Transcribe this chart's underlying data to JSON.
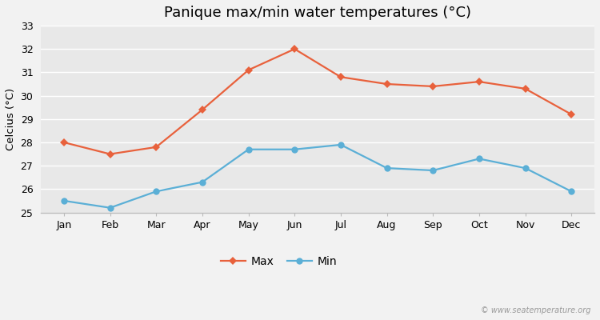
{
  "title": "Panique max/min water temperatures (°C)",
  "ylabel": "Celcius (°C)",
  "months": [
    "Jan",
    "Feb",
    "Mar",
    "Apr",
    "May",
    "Jun",
    "Jul",
    "Aug",
    "Sep",
    "Oct",
    "Nov",
    "Dec"
  ],
  "max_temps": [
    28.0,
    27.5,
    27.8,
    29.4,
    31.1,
    32.0,
    30.8,
    30.5,
    30.4,
    30.6,
    30.3,
    29.2
  ],
  "min_temps": [
    25.5,
    25.2,
    25.9,
    26.3,
    27.7,
    27.7,
    27.9,
    26.9,
    26.8,
    27.3,
    26.9,
    25.9
  ],
  "max_color": "#e8613c",
  "min_color": "#5bafd6",
  "ylim": [
    25,
    33
  ],
  "yticks": [
    25,
    26,
    27,
    28,
    29,
    30,
    31,
    32,
    33
  ],
  "fig_bg_color": "#f2f2f2",
  "plot_bg_color": "#e8e8e8",
  "grid_color": "#ffffff",
  "legend_labels": [
    "Max",
    "Min"
  ],
  "watermark": "© www.seatemperature.org",
  "title_fontsize": 13,
  "label_fontsize": 9.5,
  "tick_fontsize": 9
}
